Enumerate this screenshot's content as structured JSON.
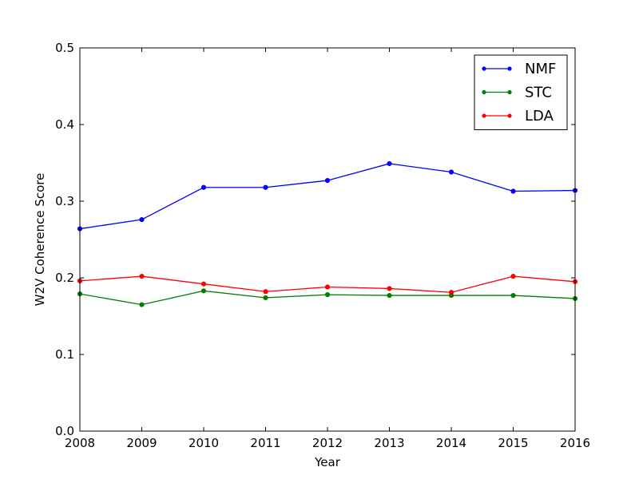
{
  "chart_data": {
    "type": "line",
    "title": "",
    "xlabel": "Year",
    "ylabel": "W2V Coherence Score",
    "xlim": [
      2008,
      2016
    ],
    "ylim": [
      0.0,
      0.5
    ],
    "x": [
      2008,
      2009,
      2010,
      2011,
      2012,
      2013,
      2014,
      2015,
      2016
    ],
    "xticks": [
      "2008",
      "2009",
      "2010",
      "2011",
      "2012",
      "2013",
      "2014",
      "2015",
      "2016"
    ],
    "yticks": [
      "0.0",
      "0.1",
      "0.2",
      "0.3",
      "0.4",
      "0.5"
    ],
    "grid": false,
    "legend_position": "top-right",
    "series": [
      {
        "name": "NMF",
        "color": "#0000ff",
        "values": [
          0.264,
          0.276,
          0.318,
          0.318,
          0.327,
          0.349,
          0.338,
          0.313,
          0.314
        ]
      },
      {
        "name": "STC",
        "color": "#008000",
        "values": [
          0.179,
          0.165,
          0.183,
          0.174,
          0.178,
          0.177,
          0.177,
          0.177,
          0.173
        ]
      },
      {
        "name": "LDA",
        "color": "#ff0000",
        "values": [
          0.196,
          0.202,
          0.192,
          0.182,
          0.188,
          0.186,
          0.181,
          0.202,
          0.195
        ]
      }
    ]
  }
}
